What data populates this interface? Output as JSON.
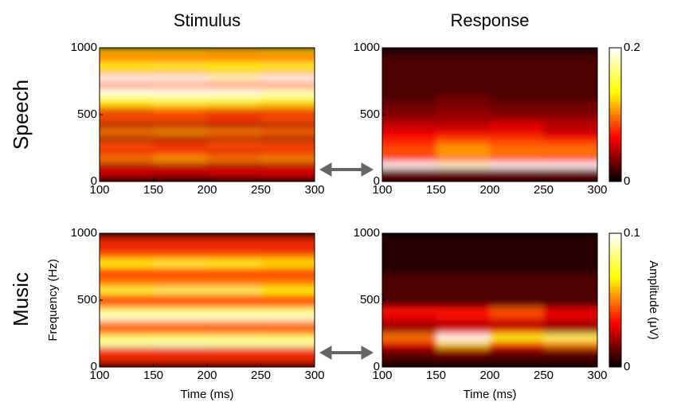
{
  "column_titles": [
    "Stimulus",
    "Response"
  ],
  "row_titles": [
    "Speech",
    "Music"
  ],
  "chart_data": [
    {
      "type": "heatmap",
      "colormap": "hot",
      "x": [
        125,
        175,
        225,
        275
      ],
      "y": [
        25,
        75,
        125,
        175,
        225,
        275,
        325,
        375,
        425,
        475,
        525,
        575,
        625,
        675,
        725,
        775,
        825,
        875,
        925,
        975
      ],
      "values": [
        [
          0.1,
          0.1,
          0.12,
          0.1
        ],
        [
          0.3,
          0.28,
          0.3,
          0.32
        ],
        [
          0.2,
          0.22,
          0.2,
          0.2
        ],
        [
          0.5,
          0.55,
          0.5,
          0.52
        ],
        [
          0.3,
          0.3,
          0.28,
          0.3
        ],
        [
          0.45,
          0.42,
          0.45,
          0.44
        ],
        [
          0.2,
          0.2,
          0.22,
          0.2
        ],
        [
          0.5,
          0.52,
          0.5,
          0.48
        ],
        [
          0.2,
          0.2,
          0.2,
          0.22
        ],
        [
          0.45,
          0.45,
          0.42,
          0.45
        ],
        [
          0.3,
          0.32,
          0.3,
          0.3
        ],
        [
          0.6,
          0.62,
          0.6,
          0.58
        ],
        [
          0.75,
          0.8,
          0.78,
          0.75
        ],
        [
          1,
          1,
          1,
          0.95
        ],
        [
          0.5,
          0.52,
          0.5,
          0.5
        ],
        [
          1,
          1,
          0.95,
          1
        ],
        [
          0.55,
          0.55,
          0.58,
          0.55
        ],
        [
          0.7,
          0.72,
          0.7,
          0.72
        ],
        [
          0.4,
          0.4,
          0.42,
          0.4
        ],
        [
          0.6,
          0.6,
          0.58,
          0.6
        ]
      ],
      "clim": [
        0,
        1
      ],
      "xlim": [
        100,
        300
      ],
      "xticks": [
        100,
        150,
        200,
        250,
        300
      ],
      "ylim": [
        0,
        1000
      ],
      "yticks": [
        0,
        500,
        1000
      ]
    },
    {
      "type": "heatmap",
      "colormap": "hot",
      "x": [
        125,
        175,
        225,
        275
      ],
      "y": [
        25,
        75,
        125,
        175,
        225,
        275,
        325,
        375,
        425,
        475,
        525,
        575,
        625,
        675,
        725,
        775,
        825,
        875,
        925,
        975
      ],
      "values": [
        [
          0.02,
          0.02,
          0.02,
          0.02
        ],
        [
          0.03,
          0.03,
          0.03,
          0.03
        ],
        [
          0.2,
          0.19,
          0.2,
          0.2
        ],
        [
          0.07,
          0.09,
          0.08,
          0.07
        ],
        [
          0.09,
          0.11,
          0.1,
          0.1
        ],
        [
          0.08,
          0.1,
          0.09,
          0.09
        ],
        [
          0.07,
          0.08,
          0.08,
          0.07
        ],
        [
          0.06,
          0.06,
          0.06,
          0.05
        ],
        [
          0.05,
          0.05,
          0.06,
          0.05
        ],
        [
          0.04,
          0.04,
          0.04,
          0.04
        ],
        [
          0.03,
          0.04,
          0.03,
          0.03
        ],
        [
          0.03,
          0.03,
          0.03,
          0.03
        ],
        [
          0.02,
          0.03,
          0.02,
          0.02
        ],
        [
          0.02,
          0.02,
          0.02,
          0.02
        ],
        [
          0.02,
          0.02,
          0.02,
          0.02
        ],
        [
          0.02,
          0.02,
          0.02,
          0.02
        ],
        [
          0.02,
          0.02,
          0.02,
          0.02
        ],
        [
          0.02,
          0.02,
          0.02,
          0.02
        ],
        [
          0.02,
          0.02,
          0.02,
          0.02
        ],
        [
          0.01,
          0.01,
          0.01,
          0.01
        ]
      ],
      "clim": [
        0,
        0.2
      ],
      "cticks": [
        0,
        0.2
      ],
      "xlim": [
        100,
        300
      ],
      "xticks": [
        100,
        150,
        200,
        250,
        300
      ],
      "ylim": [
        0,
        1000
      ],
      "yticks": [
        0,
        500,
        1000
      ]
    },
    {
      "type": "heatmap",
      "colormap": "hot",
      "x": [
        125,
        175,
        225,
        275
      ],
      "y": [
        25,
        75,
        125,
        175,
        225,
        275,
        325,
        375,
        425,
        475,
        525,
        575,
        625,
        675,
        725,
        775,
        825,
        875,
        925,
        975
      ],
      "values": [
        [
          0.2,
          0.2,
          0.2,
          0.2
        ],
        [
          0.4,
          0.4,
          0.4,
          0.4
        ],
        [
          0.3,
          0.3,
          0.3,
          0.3
        ],
        [
          0.9,
          0.92,
          0.9,
          0.9
        ],
        [
          0.8,
          0.8,
          0.82,
          0.8
        ],
        [
          0.4,
          0.4,
          0.4,
          0.4
        ],
        [
          0.5,
          0.5,
          0.5,
          0.5
        ],
        [
          0.95,
          0.95,
          0.95,
          0.95
        ],
        [
          0.8,
          0.8,
          0.8,
          0.8
        ],
        [
          0.4,
          0.4,
          0.4,
          0.4
        ],
        [
          0.45,
          0.45,
          0.45,
          0.45
        ],
        [
          0.75,
          0.8,
          0.8,
          0.7
        ],
        [
          0.5,
          0.5,
          0.5,
          0.5
        ],
        [
          0.45,
          0.45,
          0.45,
          0.45
        ],
        [
          0.4,
          0.4,
          0.4,
          0.4
        ],
        [
          0.7,
          0.75,
          0.72,
          0.65
        ],
        [
          0.5,
          0.5,
          0.5,
          0.5
        ],
        [
          0.3,
          0.3,
          0.3,
          0.3
        ],
        [
          0.4,
          0.4,
          0.4,
          0.4
        ],
        [
          0.2,
          0.2,
          0.2,
          0.2
        ]
      ],
      "clim": [
        0,
        1
      ],
      "xlim": [
        100,
        300
      ],
      "xticks": [
        100,
        150,
        200,
        250,
        300
      ],
      "ylim": [
        0,
        1000
      ],
      "yticks": [
        0,
        500,
        1000
      ],
      "xlabel": "Time (ms)",
      "ylabel": "Frequency (Hz)"
    },
    {
      "type": "heatmap",
      "colormap": "hot",
      "x": [
        125,
        175,
        225,
        275
      ],
      "y": [
        25,
        75,
        125,
        175,
        225,
        275,
        325,
        375,
        425,
        475,
        525,
        575,
        625,
        675,
        725,
        775,
        825,
        875,
        925,
        975
      ],
      "values": [
        [
          0.005,
          0.005,
          0.005,
          0.005
        ],
        [
          0.01,
          0.01,
          0.01,
          0.01
        ],
        [
          0.015,
          0.02,
          0.015,
          0.015
        ],
        [
          0.03,
          0.06,
          0.04,
          0.05
        ],
        [
          0.05,
          0.1,
          0.07,
          0.08
        ],
        [
          0.02,
          0.03,
          0.03,
          0.02
        ],
        [
          0.02,
          0.02,
          0.02,
          0.02
        ],
        [
          0.03,
          0.035,
          0.04,
          0.03
        ],
        [
          0.035,
          0.035,
          0.045,
          0.03
        ],
        [
          0.01,
          0.01,
          0.01,
          0.01
        ],
        [
          0.01,
          0.01,
          0.01,
          0.01
        ],
        [
          0.01,
          0.01,
          0.01,
          0.01
        ],
        [
          0.01,
          0.01,
          0.01,
          0.01
        ],
        [
          0.01,
          0.01,
          0.01,
          0.01
        ],
        [
          0.005,
          0.005,
          0.005,
          0.005
        ],
        [
          0.005,
          0.005,
          0.005,
          0.005
        ],
        [
          0.005,
          0.005,
          0.005,
          0.005
        ],
        [
          0.005,
          0.005,
          0.005,
          0.005
        ],
        [
          0.005,
          0.005,
          0.005,
          0.005
        ],
        [
          0.005,
          0.005,
          0.005,
          0.005
        ]
      ],
      "clim": [
        0,
        0.1
      ],
      "cticks": [
        0,
        0.1
      ],
      "clabel": "Amplitude (μV)",
      "xlim": [
        100,
        300
      ],
      "xticks": [
        100,
        150,
        200,
        250,
        300
      ],
      "ylim": [
        0,
        1000
      ],
      "yticks": [
        0,
        500,
        1000
      ],
      "xlabel": "Time (ms)"
    }
  ]
}
